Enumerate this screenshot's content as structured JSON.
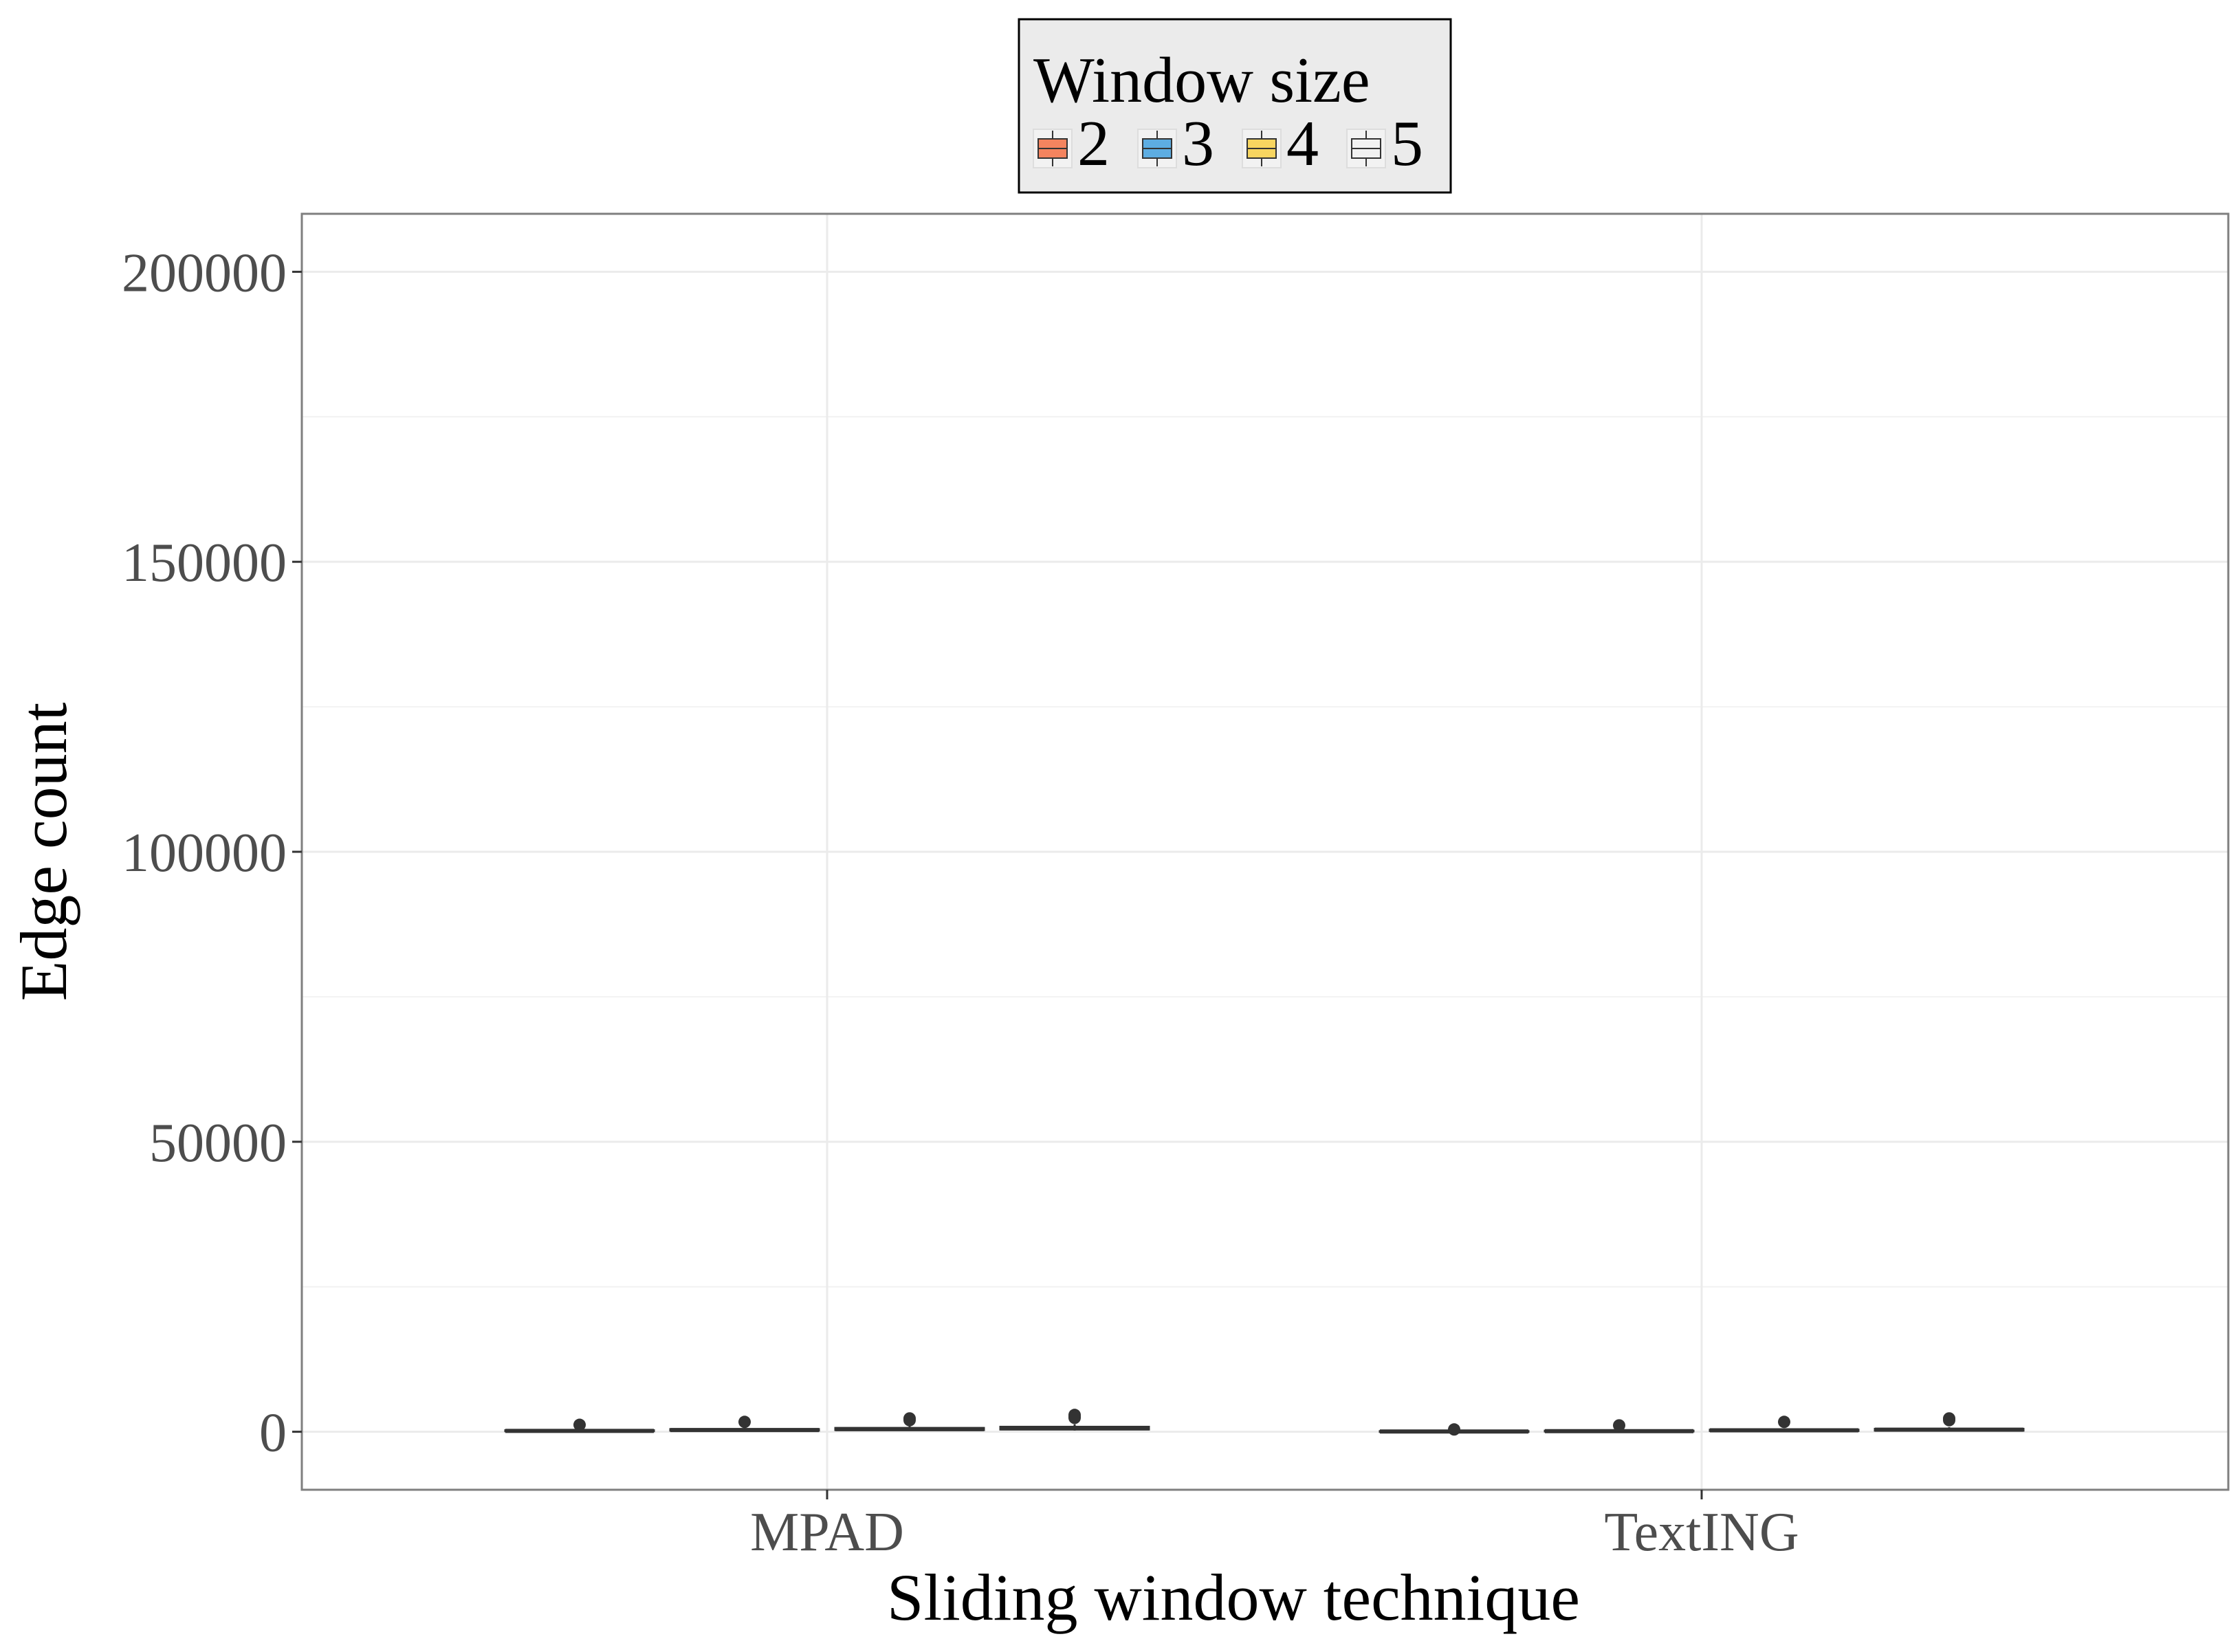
{
  "chart_data": {
    "type": "box",
    "title": "",
    "xlabel": "Sliding window technique",
    "ylabel": "Edge count",
    "categories": [
      "MPAD",
      "TextING"
    ],
    "ylim": [
      -10000,
      210000
    ],
    "yticks": [
      "0",
      "50000",
      "100000",
      "150000",
      "200000"
    ],
    "grid": true,
    "legend": {
      "title": "Window size",
      "position": "top",
      "background": "#ebebeb",
      "entries": [
        {
          "label": "2",
          "color": "#f4845f"
        },
        {
          "label": "3",
          "color": "#5dade2"
        },
        {
          "label": "4",
          "color": "#f7d560"
        },
        {
          "label": "5",
          "color": "#f2f2f2"
        }
      ]
    },
    "series": [
      {
        "name": "2",
        "color": "#f4845f",
        "boxes": [
          {
            "category": "MPAD",
            "median": 150,
            "q1": 100,
            "q3": 250,
            "whisker_low": 50,
            "whisker_high": 400,
            "outliers": [
              1200
            ]
          },
          {
            "category": "TextING",
            "median": 50,
            "q1": 20,
            "q3": 100,
            "whisker_low": 0,
            "whisker_high": 200,
            "outliers": [
              400
            ]
          }
        ]
      },
      {
        "name": "3",
        "color": "#5dade2",
        "boxes": [
          {
            "category": "MPAD",
            "median": 300,
            "q1": 200,
            "q3": 450,
            "whisker_low": 100,
            "whisker_high": 700,
            "outliers": [
              1700
            ]
          },
          {
            "category": "TextING",
            "median": 100,
            "q1": 60,
            "q3": 180,
            "whisker_low": 20,
            "whisker_high": 350,
            "outliers": [
              1100
            ]
          }
        ]
      },
      {
        "name": "4",
        "color": "#f7d560",
        "boxes": [
          {
            "category": "MPAD",
            "median": 450,
            "q1": 300,
            "q3": 650,
            "whisker_low": 150,
            "whisker_high": 1000,
            "outliers": [
              2300,
              2000
            ]
          },
          {
            "category": "TextING",
            "median": 250,
            "q1": 150,
            "q3": 350,
            "whisker_low": 50,
            "whisker_high": 600,
            "outliers": [
              1700
            ]
          }
        ]
      },
      {
        "name": "5",
        "color": "#f2f2f2",
        "boxes": [
          {
            "category": "MPAD",
            "median": 600,
            "q1": 400,
            "q3": 850,
            "whisker_low": 200,
            "whisker_high": 1300,
            "outliers": [
              2900,
              2600,
              2400
            ]
          },
          {
            "category": "TextING",
            "median": 350,
            "q1": 200,
            "q3": 500,
            "whisker_low": 80,
            "whisker_high": 800,
            "outliers": [
              2300,
              2000
            ]
          }
        ]
      }
    ]
  }
}
